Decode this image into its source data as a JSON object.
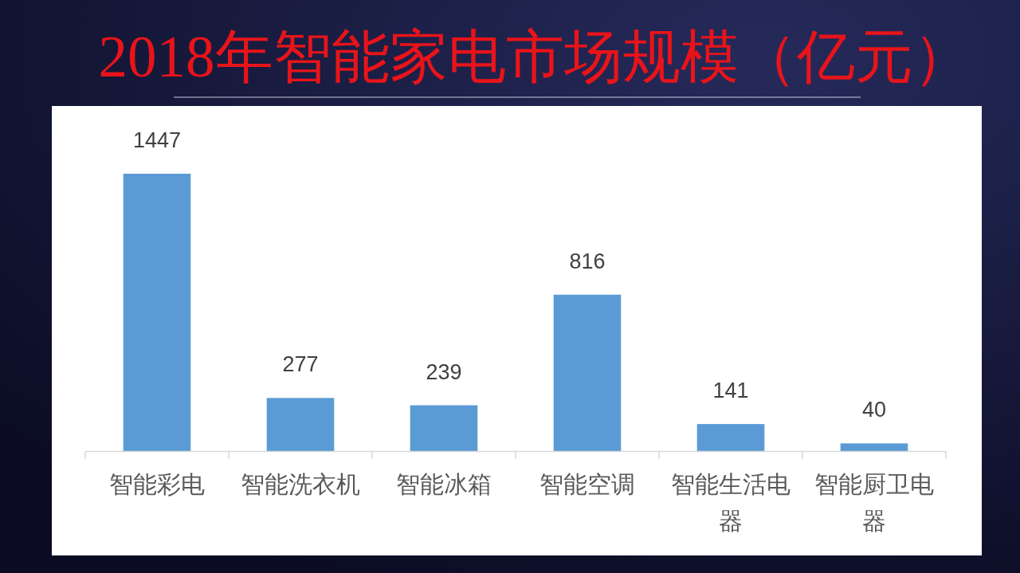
{
  "chart_data": {
    "type": "bar",
    "title": "2018年智能家电市场规模（亿元）",
    "categories": [
      "智能彩电",
      "智能洗衣机",
      "智能冰箱",
      "智能空调",
      "智能生活电器",
      "智能厨卫电器"
    ],
    "values": [
      1447,
      277,
      239,
      816,
      141,
      40
    ],
    "color": "#5b9bd5",
    "data_labels": true
  }
}
